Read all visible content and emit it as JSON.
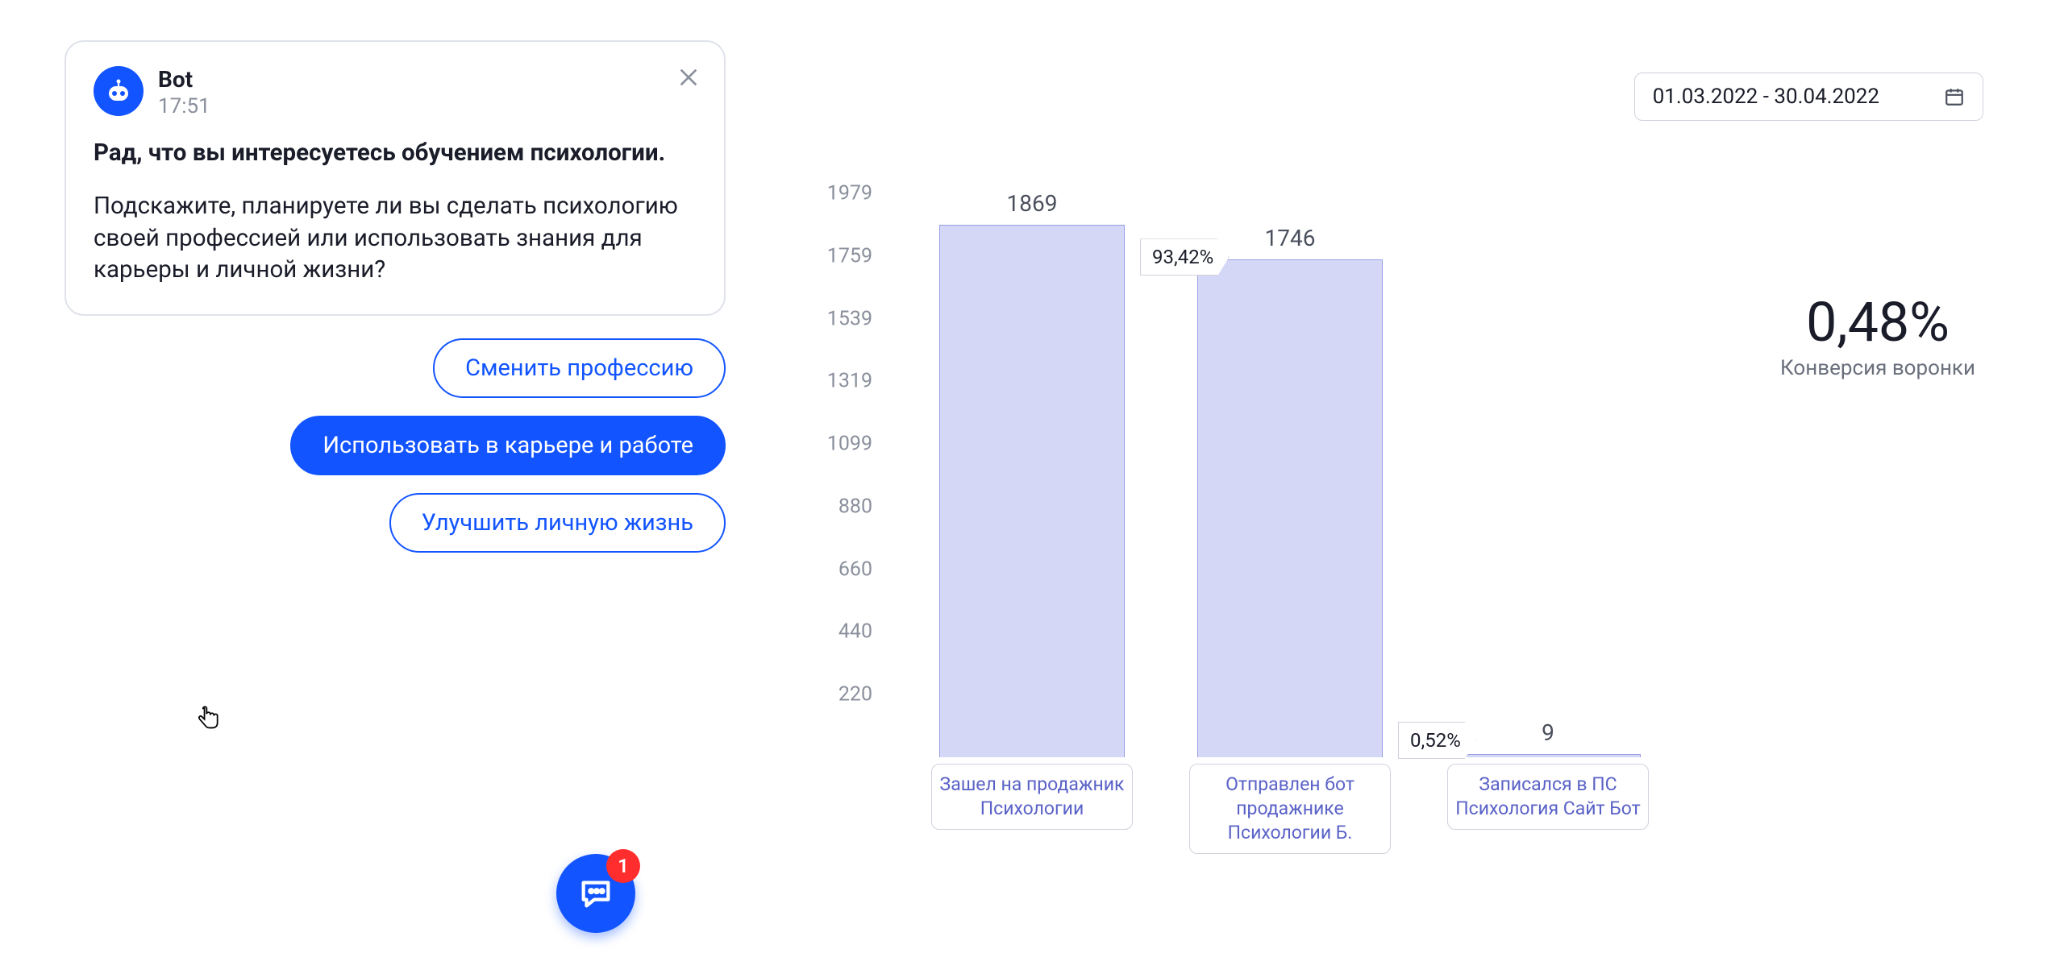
{
  "chat": {
    "bot_name": "Bot",
    "time": "17:51",
    "line1": "Рад, что вы интересуетесь обучением психологии.",
    "line2": "Подскажите, планируете ли вы сделать психологию своей профессией или использовать знания для карьеры и личной жизни?",
    "replies": [
      {
        "label": "Сменить профессию",
        "style": "outline"
      },
      {
        "label": "Использовать в карьере и работе",
        "style": "solid"
      },
      {
        "label": "Улучшить личную жизнь",
        "style": "outline"
      }
    ],
    "fab_badge": "1",
    "colors": {
      "primary": "#1254ff",
      "border": "#e0e3eb",
      "text": "#1a1d29",
      "muted": "#8a8f9c",
      "badge": "#ff2d2d"
    }
  },
  "dashboard": {
    "date_range": "01.03.2022 - 30.04.2022",
    "kpi": {
      "value": "0,48%",
      "label": "Конверсия воронки"
    },
    "chart": {
      "type": "bar",
      "y_ticks": [
        1979,
        1759,
        1539,
        1319,
        1099,
        880,
        660,
        440,
        220
      ],
      "ylim": [
        0,
        1979
      ],
      "bar_fill": "#d5d7f6",
      "bar_border": "#9a9ee6",
      "label_text": "#5a62c7",
      "tick_text": "#8a8f9c",
      "label_border": "#d0d3dd",
      "bars": [
        {
          "value": 1869,
          "value_label": "1869",
          "label": "Зашел на продажник Психологии"
        },
        {
          "value": 1746,
          "value_label": "1746",
          "label": "Отправлен бот продажнике Психологии Б."
        },
        {
          "value": 9,
          "value_label": "9",
          "label": "Записался в ПС Психология Сайт Бот"
        }
      ],
      "step_labels": [
        "93,42%",
        "0,52%"
      ]
    }
  }
}
